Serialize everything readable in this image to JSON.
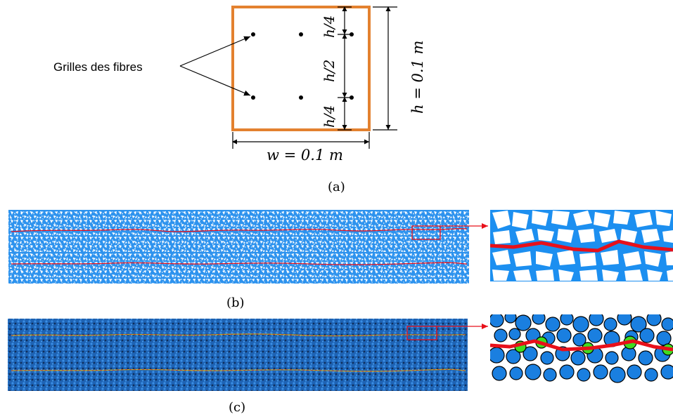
{
  "figure_a": {
    "label_fibres": "Grilles des fibres",
    "dim_h": "h = 0.1 m",
    "dim_w": "w = 0.1 m",
    "dim_top_quarter": "h/4",
    "dim_half": "h/2",
    "dim_bottom_quarter": "h/4",
    "caption": "(a)"
  },
  "figure_b": {
    "caption": "(b)"
  },
  "figure_c": {
    "caption": "(c)"
  },
  "colors": {
    "section_border": "#e3812f",
    "mesh_blue": "#1c8ff0",
    "particle_blue": "#1a7fe0",
    "crack_red": "#e8101a",
    "fibre_green": "#3fdc20"
  }
}
